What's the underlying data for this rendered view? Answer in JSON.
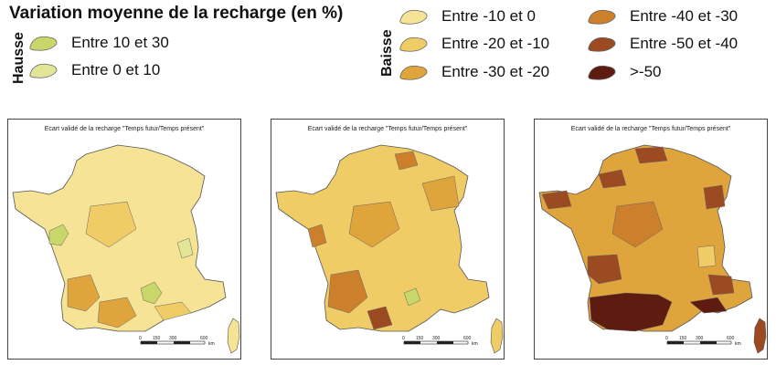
{
  "legend": {
    "title": "Variation moyenne de la recharge (en %)",
    "hausse": {
      "label": "Hausse",
      "items": [
        {
          "label": "Entre 10 et 30",
          "color": "#c9d66a"
        },
        {
          "label": "Entre 0 et 10",
          "color": "#e3e596"
        }
      ]
    },
    "baisse": {
      "label": "Baisse",
      "items": [
        {
          "label": "Entre -10 et 0",
          "color": "#f6e395"
        },
        {
          "label": "Entre -20 et -10",
          "color": "#efcc66"
        },
        {
          "label": "Entre -30 et -20",
          "color": "#e0a43c"
        },
        {
          "label": "Entre -40 et -30",
          "color": "#cd802b"
        },
        {
          "label": "Entre -50 et -40",
          "color": "#9c4a22"
        },
        {
          "label": ">-50",
          "color": "#5e1c10"
        }
      ]
    }
  },
  "maps": [
    {
      "caption": "Ecart validé de la recharge \"Temps futur/Temps présent\"",
      "base_color": "#f6e395",
      "scale_ticks": [
        "0",
        "150",
        "300",
        "600"
      ],
      "scale_unit": "km"
    },
    {
      "caption": "Ecart validé de la recharge \"Temps futur/Temps présent\"",
      "base_color": "#efcc66",
      "scale_ticks": [
        "0",
        "150",
        "300",
        "600"
      ],
      "scale_unit": "km"
    },
    {
      "caption": "Ecart validé de la recharge \"Temps futur/Temps présent\"",
      "base_color": "#e0a43c",
      "scale_ticks": [
        "0",
        "150",
        "300",
        "600"
      ],
      "scale_unit": "km"
    }
  ]
}
